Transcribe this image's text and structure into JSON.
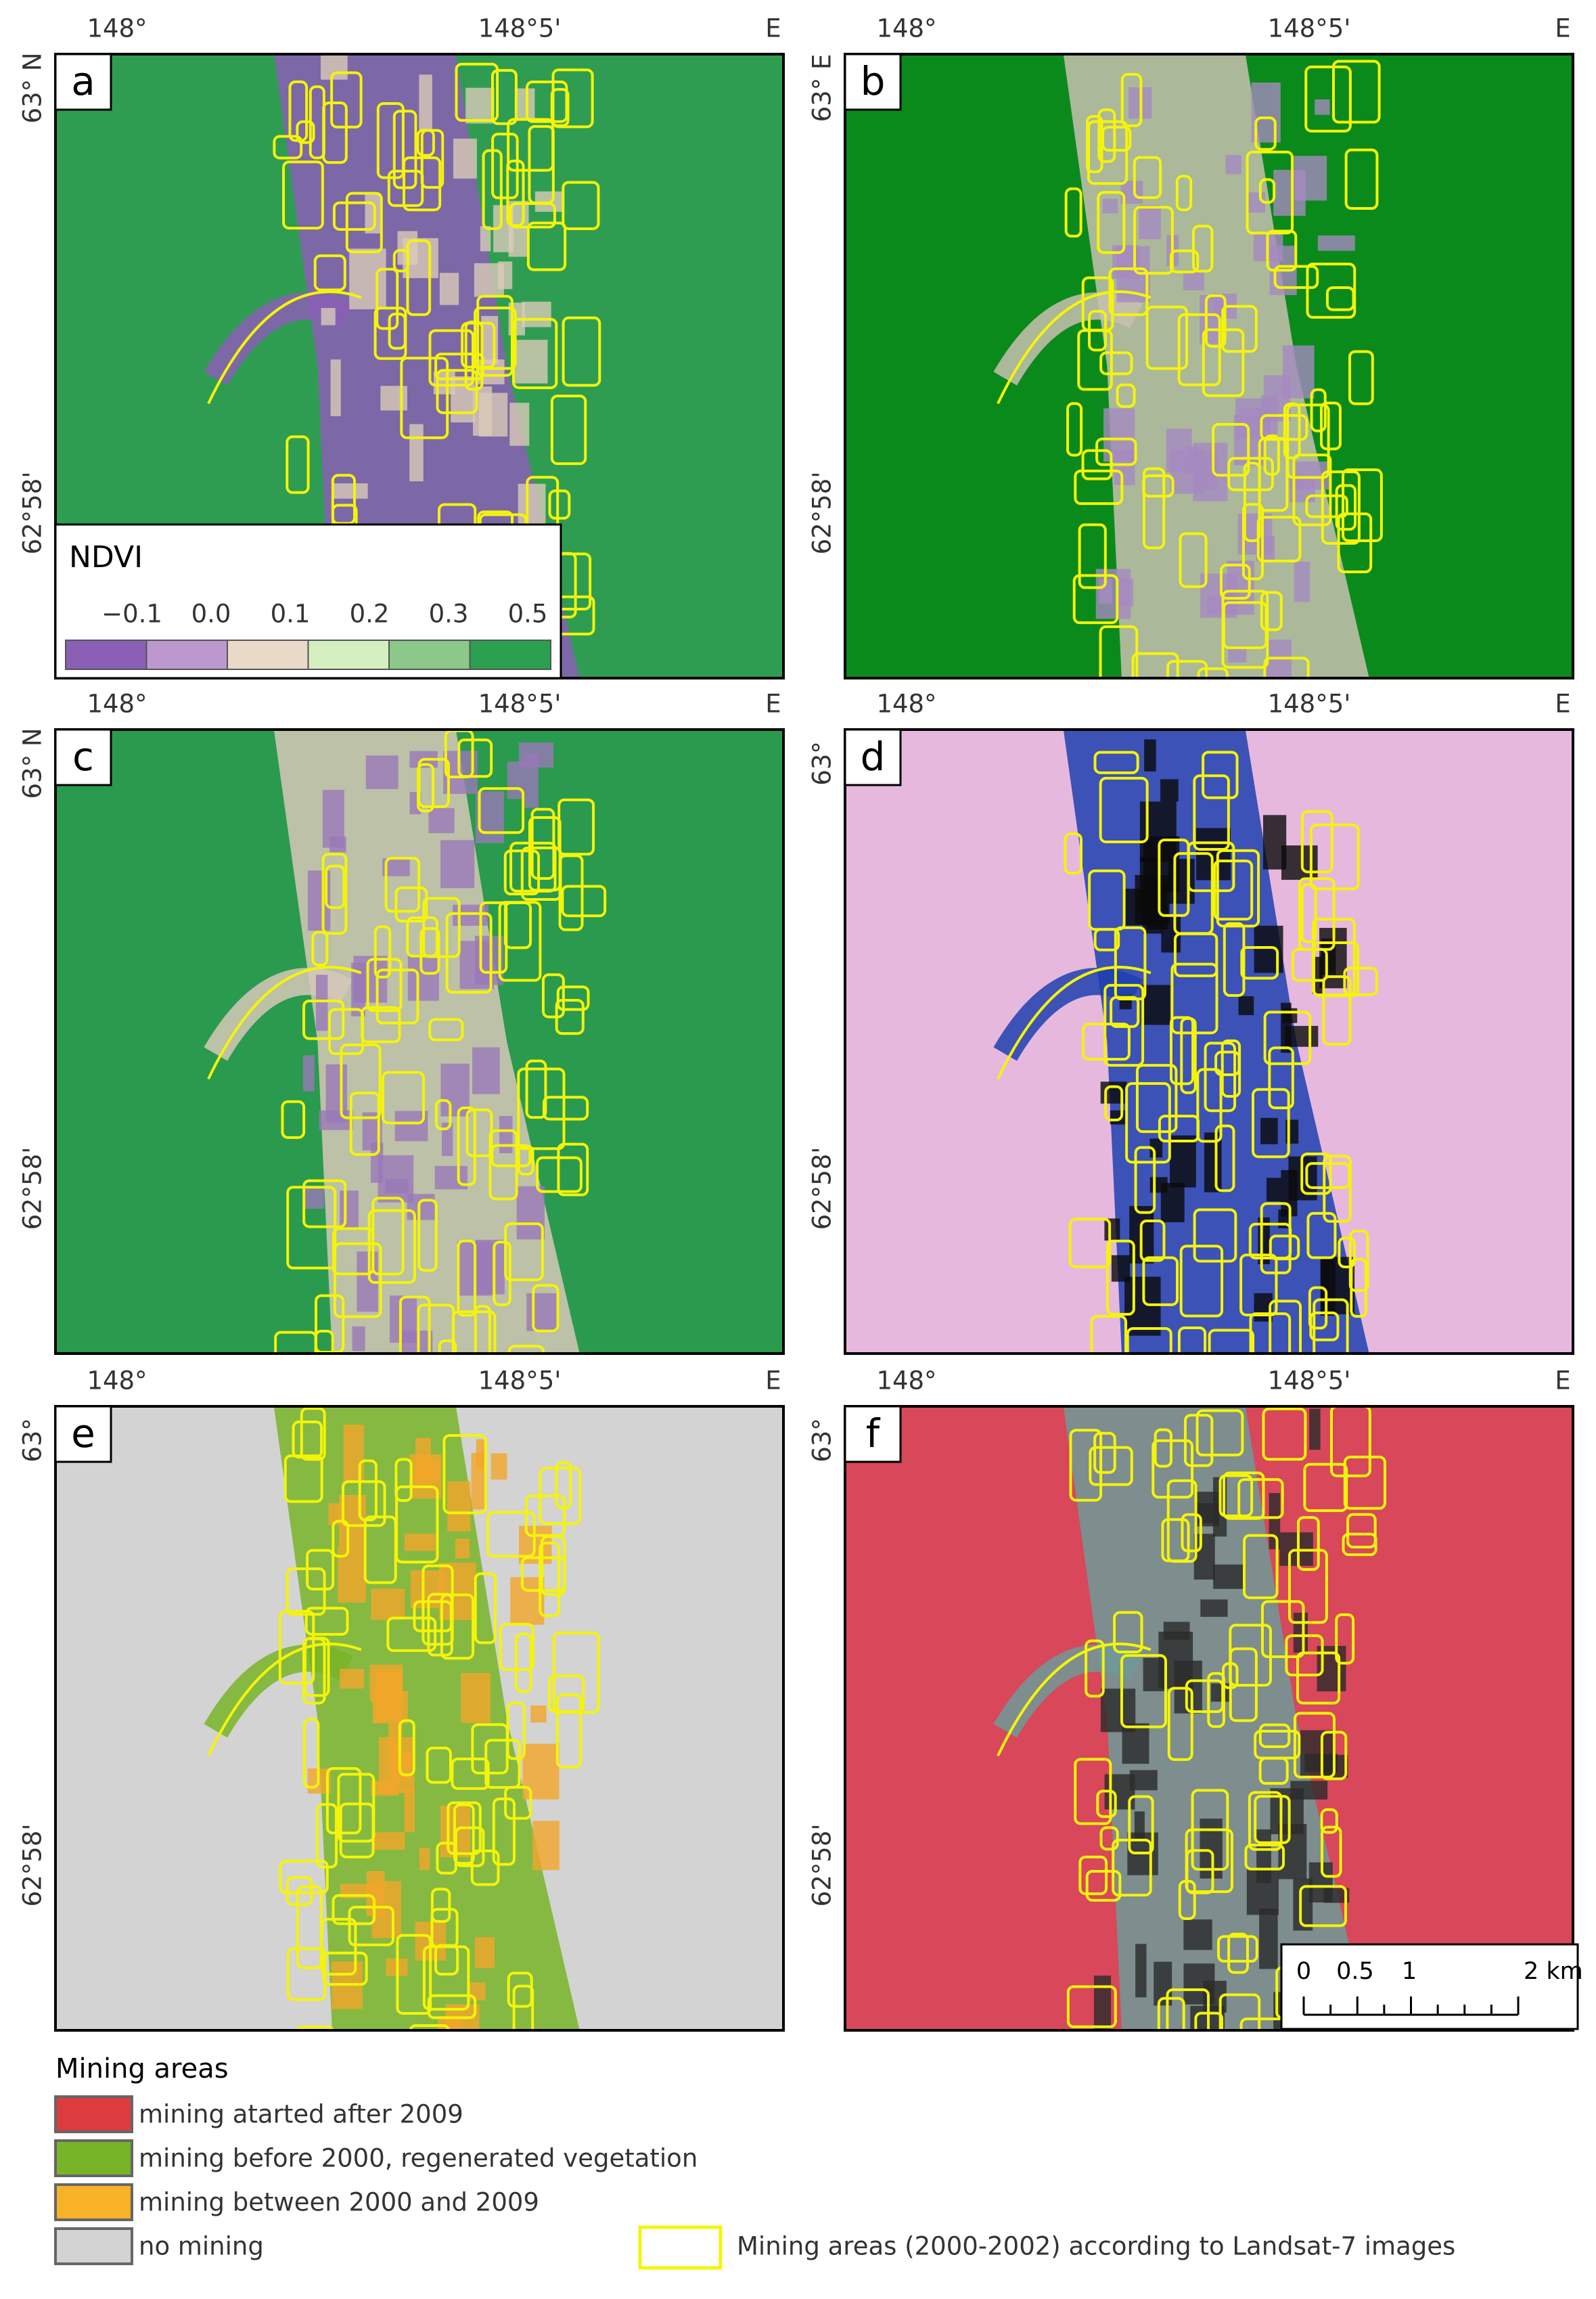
{
  "panels": [
    {
      "label": "a",
      "x_labels": [
        "148°",
        "148°5'",
        "E"
      ],
      "y_labels": [
        "63° N",
        "62°58'"
      ]
    },
    {
      "label": "b",
      "x_labels": [
        "148°",
        "148°5'",
        "E"
      ],
      "y_labels": [
        "63° E",
        "62°58'"
      ]
    },
    {
      "label": "c",
      "x_labels": [
        "148°",
        "148°5'",
        "E"
      ],
      "y_labels": [
        "63° N",
        "62°58'"
      ]
    },
    {
      "label": "d",
      "x_labels": [
        "148°",
        "148°5'",
        "E"
      ],
      "y_labels": [
        "63°",
        "62°58'"
      ]
    },
    {
      "label": "e",
      "x_labels": [
        "148°",
        "148°5'",
        "E"
      ],
      "y_labels": [
        "63°",
        "62°58'"
      ]
    },
    {
      "label": "f",
      "x_labels": [
        "148°",
        "148°5'",
        "E"
      ],
      "y_labels": [
        "63°",
        "62°58'"
      ]
    }
  ],
  "ndvi_legend": {
    "title": "NDVI",
    "ticks": [
      "−0.1",
      "0.0",
      "0.1",
      "0.2",
      "0.3",
      "0.5"
    ]
  },
  "scale_bar": {
    "labels": [
      "0",
      "0.5",
      "1",
      "2 km"
    ]
  },
  "legend": {
    "title": "Mining areas",
    "items": [
      "mining atarted after 2009",
      "mining before 2000, regenerated vegetation",
      "mining between 2000 and 2009",
      "no mining"
    ],
    "outline": "Mining areas (2000-2002) according to Landsat-7 images"
  }
}
